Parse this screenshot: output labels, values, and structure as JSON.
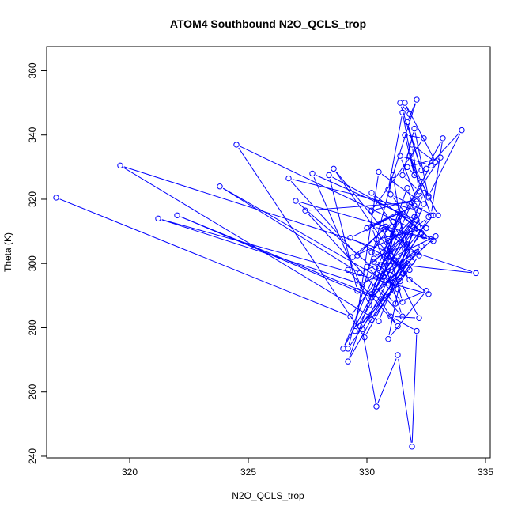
{
  "chart_data": {
    "type": "scatter",
    "title": "ATOM4 Southbound N2O_QCLS_trop",
    "xlabel": "N2O_QCLS_trop",
    "ylabel": "Theta (K)",
    "xlim": [
      316.5,
      335.2
    ],
    "ylim": [
      239.5,
      367.5
    ],
    "xticks": [
      320,
      325,
      330,
      335
    ],
    "yticks": [
      240,
      260,
      280,
      300,
      320,
      340,
      360
    ],
    "grid": false,
    "legend": "none",
    "series_color": "#0000ff",
    "connected": true,
    "series": [
      {
        "points": [
          [
            316.9,
            320.5
          ],
          [
            329.3,
            283.5
          ],
          [
            332.0,
            310.5
          ],
          [
            330.5,
            282.0
          ],
          [
            319.6,
            330.5
          ],
          [
            330.8,
            304.0
          ],
          [
            331.5,
            297.0
          ],
          [
            332.6,
            290.5
          ],
          [
            321.2,
            314.0
          ],
          [
            329.8,
            293.5
          ],
          [
            332.1,
            303.5
          ],
          [
            330.6,
            289.0
          ],
          [
            322.0,
            315.0
          ],
          [
            330.2,
            289.5
          ],
          [
            332.9,
            308.5
          ],
          [
            329.7,
            297.0
          ],
          [
            323.8,
            324.0
          ],
          [
            330.9,
            294.0
          ],
          [
            331.8,
            302.0
          ],
          [
            329.9,
            277.0
          ],
          [
            324.5,
            337.0
          ],
          [
            332.3,
            309.5
          ],
          [
            331.0,
            296.5
          ],
          [
            330.3,
            300.5
          ],
          [
            334.6,
            297.0
          ],
          [
            331.6,
            304.5
          ],
          [
            330.8,
            311.5
          ],
          [
            329.6,
            302.5
          ],
          [
            326.7,
            326.5
          ],
          [
            332.2,
            316.5
          ],
          [
            330.5,
            298.5
          ],
          [
            331.3,
            292.0
          ],
          [
            327.0,
            319.5
          ],
          [
            332.7,
            307.5
          ],
          [
            330.2,
            311.5
          ],
          [
            331.5,
            283.5
          ],
          [
            327.4,
            316.5
          ],
          [
            331.9,
            319.0
          ],
          [
            331.0,
            304.0
          ],
          [
            330.1,
            287.0
          ],
          [
            327.7,
            328.0
          ],
          [
            332.1,
            313.5
          ],
          [
            330.6,
            299.5
          ],
          [
            329.6,
            291.5
          ],
          [
            328.4,
            327.5
          ],
          [
            332.5,
            311.0
          ],
          [
            330.4,
            307.5
          ],
          [
            331.8,
            295.0
          ],
          [
            328.6,
            329.5
          ],
          [
            330.7,
            310.5
          ],
          [
            331.2,
            301.0
          ],
          [
            329.5,
            279.0
          ],
          [
            330.5,
            328.5
          ],
          [
            332.4,
            318.5
          ],
          [
            331.1,
            294.0
          ],
          [
            329.2,
            273.5
          ],
          [
            331.1,
            327.5
          ],
          [
            331.7,
            300.0
          ],
          [
            330.2,
            290.5
          ],
          [
            331.4,
            315.5
          ],
          [
            329.0,
            273.5
          ],
          [
            332.0,
            314.5
          ],
          [
            330.3,
            301.5
          ],
          [
            331.7,
            306.0
          ],
          [
            329.8,
            279.5
          ],
          [
            330.4,
            255.5
          ],
          [
            331.3,
            271.5
          ],
          [
            331.9,
            243.0
          ],
          [
            332.1,
            279.0
          ],
          [
            331.0,
            283.5
          ],
          [
            332.2,
            283.0
          ],
          [
            331.4,
            294.5
          ],
          [
            330.9,
            276.5
          ],
          [
            332.5,
            291.5
          ],
          [
            331.2,
            287.5
          ],
          [
            330.5,
            292.5
          ],
          [
            331.8,
            298.0
          ],
          [
            329.7,
            280.5
          ],
          [
            332.3,
            305.5
          ],
          [
            330.7,
            296.0
          ],
          [
            331.1,
            309.0
          ],
          [
            329.2,
            269.5
          ],
          [
            332.6,
            314.5
          ],
          [
            330.0,
            299.0
          ],
          [
            331.5,
            288.0
          ],
          [
            330.6,
            312.5
          ],
          [
            332.2,
            302.5
          ],
          [
            330.2,
            282.5
          ],
          [
            331.9,
            300.5
          ],
          [
            331.3,
            316.0
          ],
          [
            330.8,
            297.0
          ],
          [
            332.8,
            315.0
          ],
          [
            331.0,
            321.5
          ],
          [
            332.4,
            308.5
          ],
          [
            331.7,
            323.5
          ],
          [
            330.9,
            307.0
          ],
          [
            332.7,
            330.5
          ],
          [
            331.4,
            333.5
          ],
          [
            332.1,
            320.0
          ],
          [
            330.2,
            316.5
          ],
          [
            332.4,
            339.0
          ],
          [
            331.6,
            340.0
          ],
          [
            332.0,
            327.5
          ],
          [
            331.5,
            347.0
          ],
          [
            330.9,
            323.0
          ],
          [
            332.1,
            351.0
          ],
          [
            331.7,
            344.0
          ],
          [
            332.3,
            329.0
          ],
          [
            331.4,
            350.0
          ],
          [
            331.8,
            346.5
          ],
          [
            331.6,
            350.0
          ],
          [
            332.9,
            331.5
          ],
          [
            331.9,
            337.0
          ],
          [
            332.2,
            322.5
          ],
          [
            331.5,
            327.5
          ],
          [
            332.0,
            342.0
          ],
          [
            332.6,
            320.5
          ],
          [
            331.8,
            333.5
          ],
          [
            332.7,
            315.0
          ],
          [
            333.2,
            339.0
          ],
          [
            332.5,
            329.5
          ],
          [
            334.0,
            341.5
          ],
          [
            332.6,
            321.0
          ],
          [
            333.0,
            315.0
          ],
          [
            332.3,
            325.5
          ],
          [
            331.7,
            330.0
          ],
          [
            333.1,
            333.0
          ],
          [
            331.8,
            318.5
          ],
          [
            332.4,
            322.0
          ],
          [
            331.6,
            306.5
          ],
          [
            330.2,
            322.0
          ],
          [
            332.8,
            307.0
          ],
          [
            331.3,
            316.0
          ],
          [
            330.0,
            311.0
          ],
          [
            332.0,
            318.0
          ],
          [
            329.3,
            308.0
          ],
          [
            331.5,
            299.5
          ],
          [
            330.2,
            303.5
          ],
          [
            331.1,
            313.0
          ],
          [
            329.4,
            302.0
          ],
          [
            331.7,
            310.0
          ],
          [
            330.3,
            291.0
          ],
          [
            331.3,
            280.5
          ],
          [
            329.2,
            298.0
          ]
        ]
      }
    ]
  }
}
